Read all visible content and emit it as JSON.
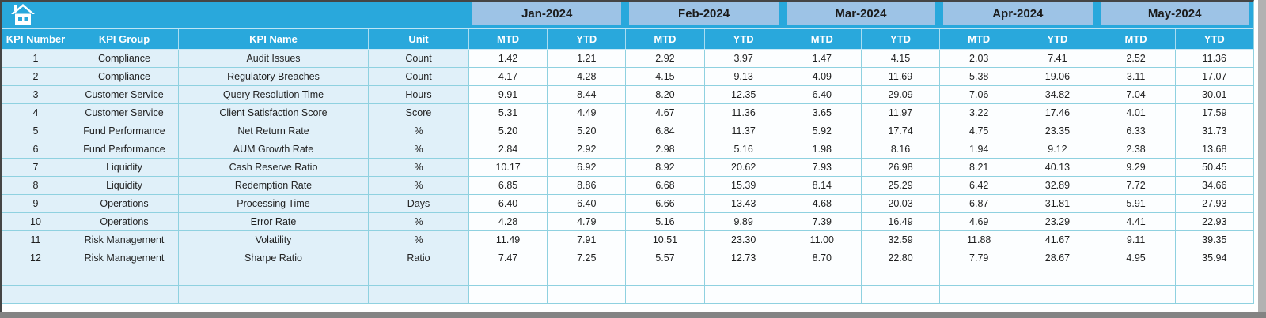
{
  "table": {
    "columns": [
      "KPI Number",
      "KPI Group",
      "KPI Name",
      "Unit"
    ],
    "months": [
      "Jan-2024",
      "Feb-2024",
      "Mar-2024",
      "Apr-2024",
      "May-2024"
    ],
    "sub_headers": [
      "MTD",
      "YTD"
    ],
    "rows": [
      {
        "kpi_number": "1",
        "kpi_group": "Compliance",
        "kpi_name": "Audit Issues",
        "unit": "Count",
        "values": [
          "1.42",
          "1.21",
          "2.92",
          "3.97",
          "1.47",
          "4.15",
          "2.03",
          "7.41",
          "2.52",
          "11.36"
        ]
      },
      {
        "kpi_number": "2",
        "kpi_group": "Compliance",
        "kpi_name": "Regulatory Breaches",
        "unit": "Count",
        "values": [
          "4.17",
          "4.28",
          "4.15",
          "9.13",
          "4.09",
          "11.69",
          "5.38",
          "19.06",
          "3.11",
          "17.07"
        ]
      },
      {
        "kpi_number": "3",
        "kpi_group": "Customer Service",
        "kpi_name": "Query Resolution Time",
        "unit": "Hours",
        "values": [
          "9.91",
          "8.44",
          "8.20",
          "12.35",
          "6.40",
          "29.09",
          "7.06",
          "34.82",
          "7.04",
          "30.01"
        ]
      },
      {
        "kpi_number": "4",
        "kpi_group": "Customer Service",
        "kpi_name": "Client Satisfaction Score",
        "unit": "Score",
        "values": [
          "5.31",
          "4.49",
          "4.67",
          "11.36",
          "3.65",
          "11.97",
          "3.22",
          "17.46",
          "4.01",
          "17.59"
        ]
      },
      {
        "kpi_number": "5",
        "kpi_group": "Fund Performance",
        "kpi_name": "Net Return Rate",
        "unit": "%",
        "values": [
          "5.20",
          "5.20",
          "6.84",
          "11.37",
          "5.92",
          "17.74",
          "4.75",
          "23.35",
          "6.33",
          "31.73"
        ]
      },
      {
        "kpi_number": "6",
        "kpi_group": "Fund Performance",
        "kpi_name": "AUM Growth Rate",
        "unit": "%",
        "values": [
          "2.84",
          "2.92",
          "2.98",
          "5.16",
          "1.98",
          "8.16",
          "1.94",
          "9.12",
          "2.38",
          "13.68"
        ]
      },
      {
        "kpi_number": "7",
        "kpi_group": "Liquidity",
        "kpi_name": "Cash Reserve Ratio",
        "unit": "%",
        "values": [
          "10.17",
          "6.92",
          "8.92",
          "20.62",
          "7.93",
          "26.98",
          "8.21",
          "40.13",
          "9.29",
          "50.45"
        ]
      },
      {
        "kpi_number": "8",
        "kpi_group": "Liquidity",
        "kpi_name": "Redemption Rate",
        "unit": "%",
        "values": [
          "6.85",
          "8.86",
          "6.68",
          "15.39",
          "8.14",
          "25.29",
          "6.42",
          "32.89",
          "7.72",
          "34.66"
        ]
      },
      {
        "kpi_number": "9",
        "kpi_group": "Operations",
        "kpi_name": "Processing Time",
        "unit": "Days",
        "values": [
          "6.40",
          "6.40",
          "6.66",
          "13.43",
          "4.68",
          "20.03",
          "6.87",
          "31.81",
          "5.91",
          "27.93"
        ]
      },
      {
        "kpi_number": "10",
        "kpi_group": "Operations",
        "kpi_name": "Error Rate",
        "unit": "%",
        "values": [
          "4.28",
          "4.79",
          "5.16",
          "9.89",
          "7.39",
          "16.49",
          "4.69",
          "23.29",
          "4.41",
          "22.93"
        ]
      },
      {
        "kpi_number": "11",
        "kpi_group": "Risk Management",
        "kpi_name": "Volatility",
        "unit": "%",
        "values": [
          "11.49",
          "7.91",
          "10.51",
          "23.30",
          "11.00",
          "32.59",
          "11.88",
          "41.67",
          "9.11",
          "39.35"
        ]
      },
      {
        "kpi_number": "12",
        "kpi_group": "Risk Management",
        "kpi_name": "Sharpe Ratio",
        "unit": "Ratio",
        "values": [
          "7.47",
          "7.25",
          "5.57",
          "12.73",
          "8.70",
          "22.80",
          "7.79",
          "28.67",
          "4.95",
          "35.94"
        ]
      },
      {
        "kpi_number": "",
        "kpi_group": "",
        "kpi_name": "",
        "unit": "",
        "values": [
          "",
          "",
          "",
          "",
          "",
          "",
          "",
          "",
          "",
          ""
        ]
      },
      {
        "kpi_number": "",
        "kpi_group": "",
        "kpi_name": "",
        "unit": "",
        "values": [
          "",
          "",
          "",
          "",
          "",
          "",
          "",
          "",
          "",
          ""
        ]
      }
    ]
  },
  "icons": {
    "home": "home-icon"
  },
  "colors": {
    "accent_cyan": "#29A8DC",
    "month_band_blue": "#9DC3E6",
    "label_cell_bg": "#E0F0F9",
    "value_cell_bg": "#FCFEFF",
    "grid_line": "#8FD1E0",
    "header_text": "#FFFFFF",
    "body_text": "#1F1F1F",
    "window_edge_gray": "#838383"
  }
}
